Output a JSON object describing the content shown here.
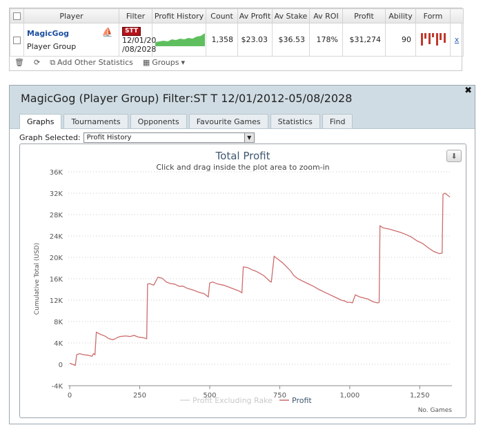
{
  "stats": {
    "headers": [
      "Player",
      "Filter",
      "Profit History",
      "Count",
      "Av Profit",
      "Av Stake",
      "Av ROI",
      "Profit",
      "Ability",
      "Form"
    ],
    "row": {
      "player": "MagicGog",
      "group": "Player Group",
      "filter_badge": "STT",
      "filter_line1": "12/01/20",
      "filter_line2": "/08/2028",
      "count": "1,358",
      "av_profit": "$23.03",
      "av_stake": "$36.53",
      "av_roi": "178%",
      "profit": "$31,274",
      "ability": "90",
      "remove": "x"
    },
    "toolbar": {
      "add_stats": "Add Other Statistics",
      "groups": "Groups"
    }
  },
  "detail": {
    "title": "MagicGog (Player Group) Filter:ST T 12/01/2012-05/08/2028",
    "tabs": [
      "Graphs",
      "Tournaments",
      "Opponents",
      "Favourite Games",
      "Statistics",
      "Find"
    ],
    "graph_selected_label": "Graph Selected:",
    "graph_selected_value": "Profit History"
  },
  "chart_data": {
    "type": "line",
    "title": "Total Profit",
    "subtitle": "Click and drag inside the plot area to zoom-in",
    "ylabel": "Cumulative Total (USD)",
    "xlabel": "No. Games",
    "xlim": [
      -5,
      1365
    ],
    "ylim": [
      -4000,
      36000
    ],
    "x_ticks": [
      0,
      250,
      500,
      750,
      1000,
      1250
    ],
    "x_tick_labels": [
      "0",
      "250",
      "500",
      "750",
      "1,000",
      "1,250"
    ],
    "y_ticks": [
      -4000,
      0,
      4000,
      8000,
      12000,
      16000,
      20000,
      24000,
      28000,
      32000,
      36000
    ],
    "y_tick_labels": [
      "-4K",
      "0",
      "4K",
      "8K",
      "12K",
      "16K",
      "20K",
      "24K",
      "28K",
      "32K",
      "36K"
    ],
    "grid": true,
    "legend_position": "bottom",
    "series": [
      {
        "name": "Profit Excluding Rake",
        "color": "#d8d8d8",
        "visible": false,
        "x": [],
        "y": []
      },
      {
        "name": "Profit",
        "color": "#cc6b6b",
        "visible": true,
        "x": [
          0,
          10,
          20,
          25,
          35,
          50,
          65,
          80,
          85,
          90,
          95,
          110,
          125,
          140,
          155,
          170,
          180,
          200,
          215,
          230,
          245,
          260,
          275,
          278,
          285,
          300,
          315,
          330,
          345,
          360,
          375,
          390,
          405,
          420,
          440,
          460,
          480,
          495,
          500,
          510,
          530,
          550,
          570,
          590,
          605,
          615,
          620,
          635,
          650,
          665,
          680,
          695,
          715,
          720,
          730,
          745,
          760,
          775,
          790,
          800,
          815,
          830,
          850,
          870,
          890,
          910,
          930,
          950,
          970,
          985,
          990,
          1000,
          1010,
          1020,
          1035,
          1050,
          1065,
          1080,
          1090,
          1100,
          1105,
          1108,
          1120,
          1140,
          1160,
          1180,
          1200,
          1220,
          1240,
          1260,
          1280,
          1300,
          1310,
          1320,
          1330,
          1333,
          1340,
          1350,
          1358
        ],
        "y": [
          200,
          0,
          -200,
          1800,
          2000,
          1800,
          1700,
          1500,
          2000,
          1800,
          6000,
          5600,
          5300,
          4800,
          4600,
          5000,
          5200,
          5300,
          5200,
          5400,
          5100,
          5000,
          4800,
          15000,
          15100,
          14800,
          16300,
          16100,
          15400,
          15100,
          15000,
          14600,
          14600,
          14200,
          13900,
          13500,
          13200,
          12600,
          15200,
          15400,
          15000,
          14800,
          14400,
          14000,
          13700,
          13400,
          18200,
          18100,
          17700,
          17400,
          17000,
          16500,
          15500,
          15400,
          20200,
          19600,
          19000,
          18200,
          17400,
          16600,
          16000,
          15600,
          15100,
          14600,
          14000,
          13500,
          13000,
          12500,
          12000,
          11800,
          11600,
          11600,
          11500,
          13000,
          12600,
          12400,
          12200,
          11800,
          11600,
          11500,
          11600,
          25900,
          25500,
          25300,
          25000,
          24700,
          24300,
          23800,
          23100,
          22600,
          21800,
          21100,
          20900,
          20700,
          20800,
          31800,
          32000,
          31600,
          31274
        ]
      }
    ]
  }
}
